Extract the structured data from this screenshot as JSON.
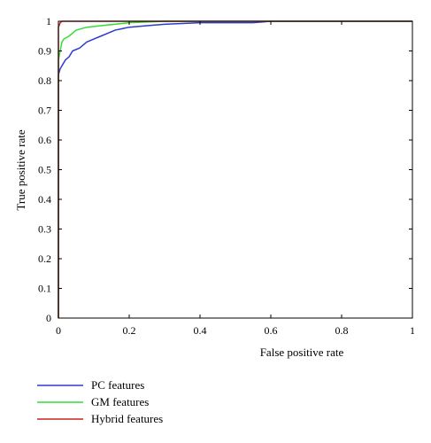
{
  "chart_data": {
    "type": "line",
    "title": "",
    "xlabel": "False positive rate",
    "ylabel": "True positive rate",
    "xlim": [
      0,
      1
    ],
    "ylim": [
      0,
      1
    ],
    "x_ticks": [
      0,
      0.2,
      0.4,
      0.6,
      0.8,
      1
    ],
    "y_ticks": [
      0,
      0.1,
      0.2,
      0.3,
      0.4,
      0.5,
      0.6,
      0.7,
      0.8,
      0.9,
      1
    ],
    "x_tick_labels": [
      "0",
      "0.2",
      "0.4",
      "0.6",
      "0.8",
      "1"
    ],
    "y_tick_labels": [
      "0",
      "0.1",
      "0.2",
      "0.3",
      "0.4",
      "0.5",
      "0.6",
      "0.7",
      "0.8",
      "0.9",
      "1"
    ],
    "grid": false,
    "legend_position": "bottom-left, below plot",
    "series": [
      {
        "name": "PC features",
        "color": "#2b3bd0",
        "points": [
          [
            0,
            0
          ],
          [
            0,
            0.82
          ],
          [
            0.005,
            0.84
          ],
          [
            0.01,
            0.85
          ],
          [
            0.015,
            0.86
          ],
          [
            0.02,
            0.87
          ],
          [
            0.03,
            0.88
          ],
          [
            0.04,
            0.9
          ],
          [
            0.06,
            0.91
          ],
          [
            0.08,
            0.93
          ],
          [
            0.1,
            0.94
          ],
          [
            0.12,
            0.95
          ],
          [
            0.14,
            0.96
          ],
          [
            0.16,
            0.97
          ],
          [
            0.18,
            0.975
          ],
          [
            0.2,
            0.98
          ],
          [
            0.25,
            0.985
          ],
          [
            0.3,
            0.99
          ],
          [
            0.4,
            0.995
          ],
          [
            0.55,
            0.995
          ],
          [
            0.6,
            1.0
          ],
          [
            1.0,
            1.0
          ]
        ]
      },
      {
        "name": "GM features",
        "color": "#33dd33",
        "points": [
          [
            0,
            0
          ],
          [
            0,
            0.87
          ],
          [
            0.005,
            0.9
          ],
          [
            0.01,
            0.93
          ],
          [
            0.015,
            0.94
          ],
          [
            0.03,
            0.95
          ],
          [
            0.05,
            0.97
          ],
          [
            0.08,
            0.98
          ],
          [
            0.12,
            0.985
          ],
          [
            0.16,
            0.99
          ],
          [
            0.2,
            0.995
          ],
          [
            0.3,
            1.0
          ],
          [
            1.0,
            1.0
          ]
        ]
      },
      {
        "name": "Hybrid features",
        "color": "#cc2222",
        "points": [
          [
            0,
            0
          ],
          [
            0,
            0.98
          ],
          [
            0.005,
            0.995
          ],
          [
            0.01,
            1.0
          ],
          [
            1.0,
            1.0
          ]
        ]
      }
    ]
  }
}
